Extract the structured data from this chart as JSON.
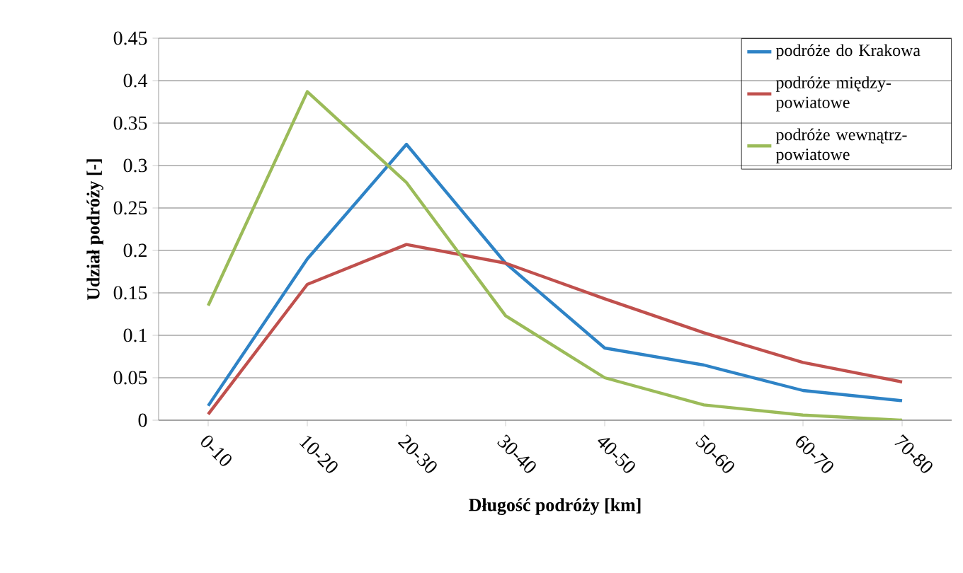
{
  "chart_data": {
    "type": "line",
    "xlabel": "Długość podróży [km]",
    "ylabel": "Udział podróży [-]",
    "categories": [
      "0-10",
      "10-20",
      "20-30",
      "30-40",
      "40-50",
      "50-60",
      "60-70",
      "70-80"
    ],
    "series": [
      {
        "name": "podróże do Krakowa",
        "color": "#2e83c6",
        "values": [
          0.017,
          0.19,
          0.325,
          0.185,
          0.085,
          0.065,
          0.035,
          0.023
        ]
      },
      {
        "name": "podróże między-powiatowe",
        "color": "#c0504d",
        "values": [
          0.007,
          0.16,
          0.207,
          0.185,
          0.143,
          0.103,
          0.068,
          0.045
        ]
      },
      {
        "name": "podróże wewnątrz-powiatowe",
        "color": "#9bbb59",
        "values": [
          0.135,
          0.387,
          0.28,
          0.123,
          0.05,
          0.018,
          0.006,
          0.0
        ]
      }
    ],
    "ylim": [
      0,
      0.45
    ],
    "yticks": [
      0,
      0.05,
      0.1,
      0.15,
      0.2,
      0.25,
      0.3,
      0.35,
      0.4,
      0.45
    ],
    "grid": "y",
    "legend": "top right",
    "marker": "none",
    "line_style": "solid"
  }
}
